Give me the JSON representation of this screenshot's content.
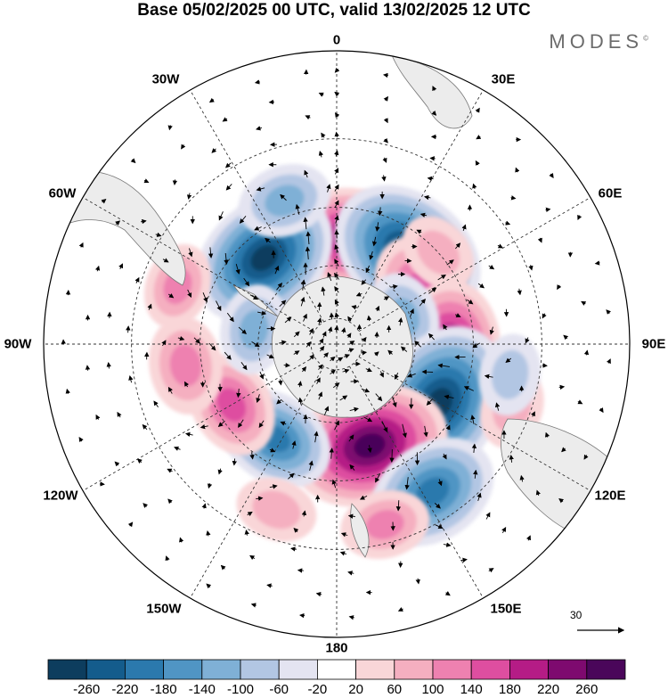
{
  "title": "Base 05/02/2025 00 UTC, valid 13/02/2025 12 UTC",
  "brand": "MODES",
  "brand_mark": "©",
  "longitude_labels": [
    "0",
    "30E",
    "60E",
    "90E",
    "120E",
    "150E",
    "180",
    "150W",
    "120W",
    "90W",
    "60W",
    "30W"
  ],
  "vector_reference": "30",
  "colorbar": {
    "colors": [
      "#0d3d5e",
      "#145c8c",
      "#2b79ad",
      "#5095c4",
      "#7fb0d6",
      "#b2c6e3",
      "#e4e4f1",
      "#ffffff",
      "#f9d6d8",
      "#f5afc0",
      "#ee81b0",
      "#de4ea0",
      "#b51c86",
      "#7e0a6f",
      "#4a065a"
    ],
    "ticks": [
      "-260",
      "-220",
      "-180",
      "-140",
      "-100",
      "-60",
      "-20",
      "20",
      "60",
      "100",
      "140",
      "180",
      "220",
      "260"
    ]
  },
  "anomalies": [
    {
      "lon": 8,
      "lat": -50,
      "value": 190
    },
    {
      "lon": 38,
      "lat": -47,
      "value": -250
    },
    {
      "lon": 58,
      "lat": -52,
      "value": 140
    },
    {
      "lon": 48,
      "lat": -40,
      "value": 60
    },
    {
      "lon": -40,
      "lat": -48,
      "value": -230
    },
    {
      "lon": -20,
      "lat": -35,
      "value": -90
    },
    {
      "lon": 93,
      "lat": -48,
      "value": 200
    },
    {
      "lon": 68,
      "lat": -62,
      "value": -80
    },
    {
      "lon": 120,
      "lat": -46,
      "value": -260
    },
    {
      "lon": 162,
      "lat": -50,
      "value": 250
    },
    {
      "lon": 147,
      "lat": -28,
      "value": -180
    },
    {
      "lon": -147,
      "lat": -48,
      "value": -150
    },
    {
      "lon": -120,
      "lat": -45,
      "value": 120
    },
    {
      "lon": -98,
      "lat": -35,
      "value": 100
    },
    {
      "lon": -80,
      "lat": -58,
      "value": -80
    },
    {
      "lon": 165,
      "lat": -25,
      "value": 80
    },
    {
      "lon": -160,
      "lat": -28,
      "value": 60
    },
    {
      "lon": 110,
      "lat": -25,
      "value": 60
    },
    {
      "lon": -70,
      "lat": -30,
      "value": 70
    },
    {
      "lon": 100,
      "lat": -28,
      "value": -60
    }
  ]
}
